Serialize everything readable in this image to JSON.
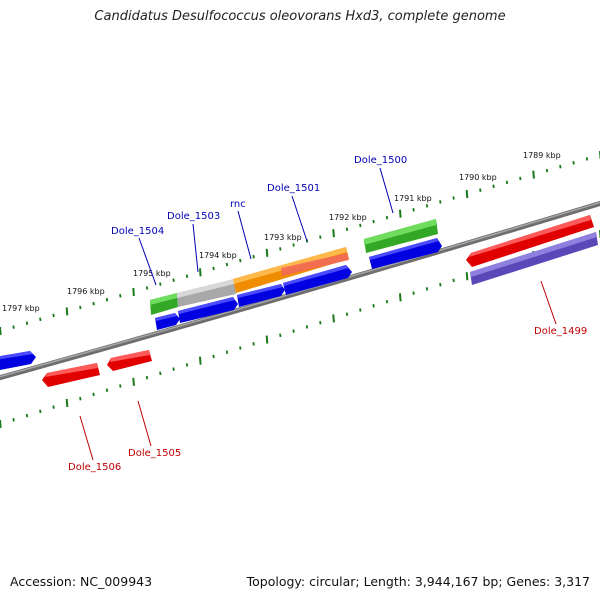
{
  "title": "Candidatus Desulfococcus oleovorans Hxd3, complete genome",
  "accession": "Accession: NC_009943",
  "topology": "Topology: circular; Length: 3,944,167 bp; Genes: 3,317",
  "colors": {
    "backbone": "#7a7a7a",
    "ticks": "#1a7a1a",
    "forward_gene": "#0000e6",
    "reverse_gene": "#ee0000",
    "reverse_gene_alt": "#7060c8",
    "orange_feature": "#f49a10",
    "green_feature": "#3dbb2a",
    "grey_feature": "#b8b8b8",
    "label_forward": "#0000b4",
    "label_reverse": "#c00000"
  },
  "scale": {
    "unit": "kbp",
    "tick_labels": [
      "1789 kbp",
      "1790 kbp",
      "1791 kbp",
      "1792 kbp",
      "1793 kbp",
      "1794 kbp",
      "1795 kbp",
      "1796 kbp",
      "1797 kbp"
    ]
  },
  "genes": [
    {
      "label": "Dole_1500",
      "strand": "forward"
    },
    {
      "label": "Dole_1501",
      "strand": "forward"
    },
    {
      "label": "rnc",
      "strand": "forward"
    },
    {
      "label": "Dole_1503",
      "strand": "forward"
    },
    {
      "label": "Dole_1504",
      "strand": "forward"
    },
    {
      "label": "Dole_1499",
      "strand": "reverse"
    },
    {
      "label": "Dole_1505",
      "strand": "reverse"
    },
    {
      "label": "Dole_1506",
      "strand": "reverse"
    }
  ]
}
